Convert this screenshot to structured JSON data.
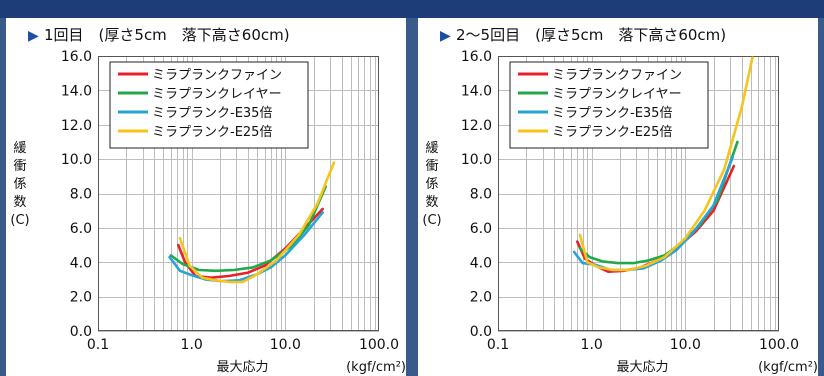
{
  "colors": {
    "background": "#3a5a8c",
    "top_bar": "#1c3d77",
    "panel": "#ffffff",
    "grid": "#bdbdbd",
    "plot_border": "#555555",
    "title_marker": "#1b4fa3"
  },
  "chart_data": [
    {
      "type": "line",
      "title": "1回目　(厚さ5cm　落下高さ60cm)",
      "title_marker": "▶",
      "xlabel": "最大応力",
      "x_unit": "(kgf/cm²)",
      "ylabel_chars": [
        "緩",
        "衝",
        "係",
        "数",
        "(C)"
      ],
      "xscale": "log",
      "xlim": [
        0.1,
        100
      ],
      "ylim": [
        0,
        16
      ],
      "x_ticks": [
        {
          "v": 0.1,
          "label": "0.1"
        },
        {
          "v": 1,
          "label": "1.0"
        },
        {
          "v": 10,
          "label": "10.0"
        },
        {
          "v": 100,
          "label": "100.0"
        }
      ],
      "y_ticks": [
        {
          "v": 0,
          "label": "0.0"
        },
        {
          "v": 2,
          "label": "2.0"
        },
        {
          "v": 4,
          "label": "4.0"
        },
        {
          "v": 6,
          "label": "6.0"
        },
        {
          "v": 8,
          "label": "8.0"
        },
        {
          "v": 10,
          "label": "10.0"
        },
        {
          "v": 12,
          "label": "12.0"
        },
        {
          "v": 14,
          "label": "14.0"
        },
        {
          "v": 16,
          "label": "16.0"
        }
      ],
      "grid": true,
      "legend_position": "top-left",
      "series": [
        {
          "name": "ミラプランクファイン",
          "color": "#e8202a",
          "x": [
            0.72,
            0.85,
            1.1,
            1.6,
            2.5,
            4,
            6,
            10,
            15,
            25
          ],
          "y": [
            5.0,
            4.0,
            3.2,
            3.1,
            3.2,
            3.4,
            3.8,
            4.8,
            5.8,
            7.1
          ]
        },
        {
          "name": "ミラプランクレイヤー",
          "color": "#22a84a",
          "x": [
            0.6,
            0.8,
            1.2,
            1.8,
            2.8,
            4.5,
            7,
            12,
            18,
            27
          ],
          "y": [
            4.4,
            3.9,
            3.55,
            3.5,
            3.55,
            3.7,
            4.1,
            5.0,
            6.2,
            8.4
          ]
        },
        {
          "name": "ミラプランク-E35倍",
          "color": "#27a3d8",
          "x": [
            0.58,
            0.75,
            1.0,
            1.4,
            2.1,
            3.2,
            5,
            7,
            10,
            16,
            25
          ],
          "y": [
            4.3,
            3.5,
            3.25,
            3.0,
            2.9,
            2.95,
            3.3,
            3.7,
            4.4,
            5.6,
            6.9
          ]
        },
        {
          "name": "ミラプランク-E25倍",
          "color": "#f6c41a",
          "x": [
            0.75,
            0.95,
            1.3,
            1.8,
            2.6,
            3.5,
            5,
            8,
            14,
            22,
            33
          ],
          "y": [
            5.4,
            3.8,
            3.1,
            2.95,
            2.85,
            2.85,
            3.3,
            4.1,
            5.6,
            7.4,
            9.8
          ]
        }
      ]
    },
    {
      "type": "line",
      "title": "2〜5回目　(厚さ5cm　落下高さ60cm)",
      "title_marker": "▶",
      "xlabel": "最大応力",
      "x_unit": "(kgf/cm²)",
      "ylabel_chars": [
        "緩",
        "衝",
        "係",
        "数",
        "(C)"
      ],
      "xscale": "log",
      "xlim": [
        0.1,
        100
      ],
      "ylim": [
        0,
        16
      ],
      "x_ticks": [
        {
          "v": 0.1,
          "label": "0.1"
        },
        {
          "v": 1,
          "label": "1.0"
        },
        {
          "v": 10,
          "label": "10.0"
        },
        {
          "v": 100,
          "label": "100.0"
        }
      ],
      "y_ticks": [
        {
          "v": 0,
          "label": "0.0"
        },
        {
          "v": 2,
          "label": "2.0"
        },
        {
          "v": 4,
          "label": "4.0"
        },
        {
          "v": 6,
          "label": "6.0"
        },
        {
          "v": 8,
          "label": "8.0"
        },
        {
          "v": 10,
          "label": "10.0"
        },
        {
          "v": 12,
          "label": "12.0"
        },
        {
          "v": 14,
          "label": "14.0"
        },
        {
          "v": 16,
          "label": "16.0"
        }
      ],
      "grid": true,
      "legend_position": "top-left",
      "series": [
        {
          "name": "ミラプランクファイン",
          "color": "#e8202a",
          "x": [
            0.7,
            0.85,
            1.1,
            1.5,
            2.2,
            3.3,
            5,
            8,
            13,
            20,
            33
          ],
          "y": [
            5.2,
            4.2,
            3.8,
            3.45,
            3.5,
            3.7,
            4.1,
            4.8,
            5.8,
            7.0,
            9.6
          ]
        },
        {
          "name": "ミラプランクレイヤー",
          "color": "#22a84a",
          "x": [
            0.75,
            0.95,
            1.3,
            1.9,
            2.8,
            4,
            6,
            9,
            14,
            22,
            36
          ],
          "y": [
            4.8,
            4.3,
            4.05,
            3.95,
            3.95,
            4.1,
            4.4,
            5.1,
            6.1,
            7.6,
            11.0
          ]
        },
        {
          "name": "ミラプランク-E35倍",
          "color": "#27a3d8",
          "x": [
            0.65,
            0.8,
            1.1,
            1.6,
            2.4,
            3.6,
            5.5,
            8,
            12,
            20,
            32
          ],
          "y": [
            4.6,
            3.95,
            3.85,
            3.55,
            3.55,
            3.65,
            4.1,
            4.7,
            5.7,
            7.3,
            10.1
          ]
        },
        {
          "name": "ミラプランク-E25倍",
          "color": "#f6c41a",
          "x": [
            0.75,
            0.9,
            1.2,
            1.7,
            2.5,
            3.8,
            6,
            10,
            16,
            26,
            40,
            52
          ],
          "y": [
            5.6,
            4.0,
            3.7,
            3.55,
            3.55,
            3.8,
            4.3,
            5.4,
            7.0,
            9.4,
            13.0,
            15.9
          ]
        }
      ]
    }
  ]
}
